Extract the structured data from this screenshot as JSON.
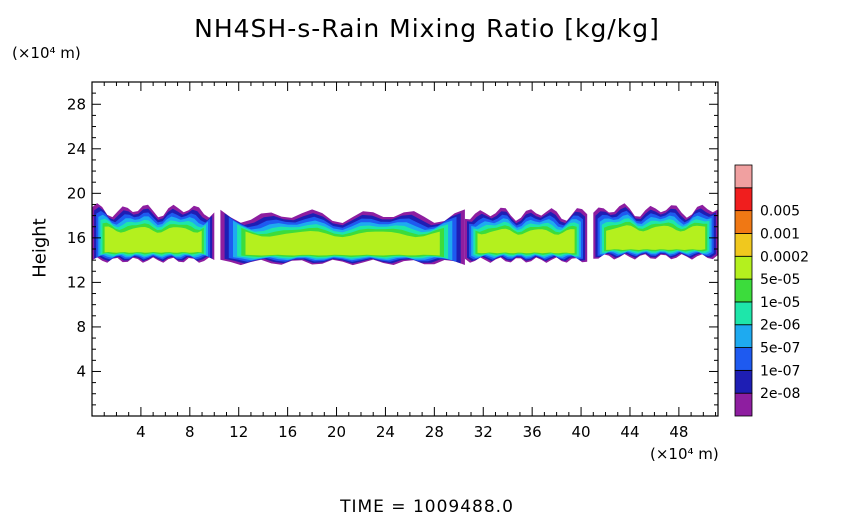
{
  "chart_data": {
    "type": "heatmap",
    "title": "NH4SH-s-Rain Mixing Ratio [kg/kg]",
    "ylabel": "Height",
    "y_unit": "(×10⁴ m)",
    "x_unit": "(×10⁴ m)",
    "xlim": [
      0,
      51.2
    ],
    "ylim": [
      0,
      30
    ],
    "x_ticks": [
      4,
      8,
      12,
      16,
      20,
      24,
      28,
      32,
      36,
      40,
      44,
      48
    ],
    "y_ticks": [
      4,
      8,
      12,
      16,
      20,
      24,
      28
    ],
    "colorbar": {
      "levels": [
        "2e-08",
        "1e-07",
        "5e-07",
        "2e-06",
        "1e-05",
        "5e-05",
        "0.0002",
        "0.001",
        "0.005"
      ],
      "colors": [
        "#8e1ea0",
        "#1e1eb4",
        "#1e5af0",
        "#1eaaf0",
        "#1ee6aa",
        "#3cdc3c",
        "#b4f01e",
        "#f0c81e",
        "#f07814",
        "#f01e1e",
        "#f0a0a0"
      ]
    },
    "clouds": [
      {
        "x0": 0.0,
        "x1": 10.0,
        "bottom": 14.0,
        "top": 18.5
      },
      {
        "x0": 10.5,
        "x1": 30.5,
        "bottom": 13.8,
        "top": 18.0
      },
      {
        "x0": 30.5,
        "x1": 40.5,
        "bottom": 14.0,
        "top": 18.2
      },
      {
        "x0": 41.0,
        "x1": 51.2,
        "bottom": 14.3,
        "top": 18.5
      }
    ],
    "footer": "TIME  =  1009488.0"
  }
}
